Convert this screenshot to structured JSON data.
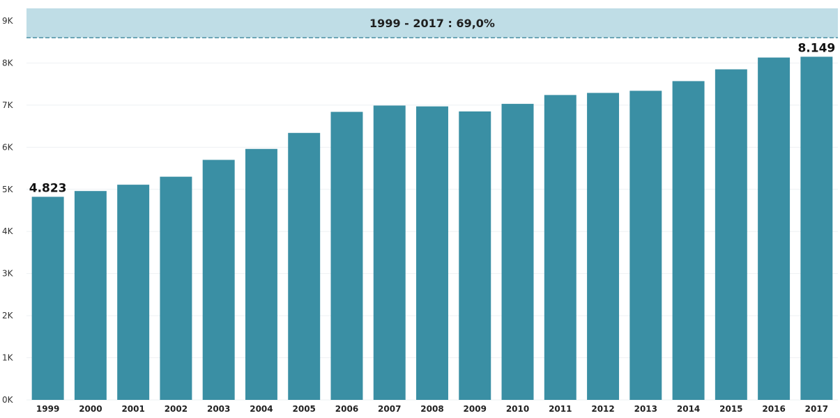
{
  "chart_data": {
    "type": "bar",
    "title": "",
    "xlabel": "",
    "ylabel": "",
    "categories": [
      "1999",
      "2000",
      "2001",
      "2002",
      "2003",
      "2004",
      "2005",
      "2006",
      "2007",
      "2008",
      "2009",
      "2010",
      "2011",
      "2012",
      "2013",
      "2014",
      "2015",
      "2016",
      "2017"
    ],
    "values": [
      4823,
      4960,
      5110,
      5300,
      5700,
      5960,
      6340,
      6840,
      6990,
      6970,
      6850,
      7030,
      7240,
      7290,
      7340,
      7570,
      7850,
      8130,
      8149
    ],
    "ylim": [
      0,
      9000
    ],
    "yticks": [
      "0K",
      "1K",
      "2K",
      "3K",
      "4K",
      "5K",
      "6K",
      "7K",
      "8K",
      "9K"
    ],
    "bar_color": "#3a8fa4",
    "grid": true,
    "annotation_band": {
      "label": "1999 - 2017 : 69,0%",
      "from_value": 8600,
      "to_value": 9300,
      "fill": "#bfdde6",
      "line_color": "#4a8ea3"
    },
    "data_labels": [
      {
        "category": "1999",
        "text": "4.823"
      },
      {
        "category": "2017",
        "text": "8.149"
      }
    ]
  }
}
